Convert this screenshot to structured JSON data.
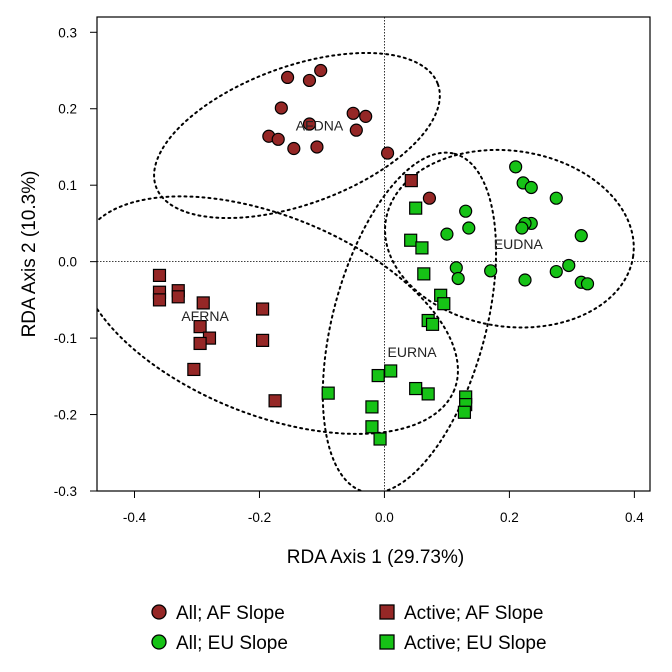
{
  "chart_data": {
    "type": "scatter",
    "xlabel": "RDA Axis 1 (29.73%)",
    "ylabel": "RDA Axis 2 (10.3%)",
    "xlim": [
      -0.46,
      0.425
    ],
    "ylim": [
      -0.3,
      0.32
    ],
    "xticks": [
      -0.4,
      -0.2,
      0.0,
      0.2,
      0.4
    ],
    "yticks": [
      -0.3,
      -0.2,
      -0.1,
      0.0,
      0.1,
      0.2,
      0.3
    ],
    "xtick_labels": [
      "-0.4",
      "-0.2",
      "0.0",
      "0.2",
      "0.4"
    ],
    "ytick_labels": [
      "-0.3",
      "-0.2",
      "-0.1",
      "0.0",
      "0.1",
      "0.2",
      "0.3"
    ],
    "grid": false,
    "zero_lines": true,
    "legend_position": "bottom",
    "colors": {
      "AF": "#952726",
      "EU": "#16c216",
      "outline": "#000000"
    },
    "series": [
      {
        "name": "All; AF Slope",
        "group": "AF",
        "marker": "circle",
        "points": [
          [
            -0.155,
            0.241
          ],
          [
            -0.12,
            0.237
          ],
          [
            -0.102,
            0.25
          ],
          [
            -0.165,
            0.201
          ],
          [
            -0.185,
            0.164
          ],
          [
            -0.17,
            0.16
          ],
          [
            -0.12,
            0.18
          ],
          [
            -0.05,
            0.194
          ],
          [
            -0.03,
            0.19
          ],
          [
            -0.045,
            0.172
          ],
          [
            -0.145,
            0.148
          ],
          [
            -0.108,
            0.15
          ],
          [
            0.005,
            0.142
          ],
          [
            0.072,
            0.083
          ]
        ]
      },
      {
        "name": "Active; AF Slope",
        "group": "AF",
        "marker": "square",
        "points": [
          [
            -0.36,
            -0.018
          ],
          [
            -0.36,
            -0.04
          ],
          [
            -0.33,
            -0.038
          ],
          [
            -0.33,
            -0.046
          ],
          [
            -0.36,
            -0.05
          ],
          [
            -0.29,
            -0.054
          ],
          [
            -0.195,
            -0.062
          ],
          [
            -0.295,
            -0.085
          ],
          [
            -0.28,
            -0.1
          ],
          [
            -0.295,
            -0.107
          ],
          [
            -0.195,
            -0.103
          ],
          [
            -0.305,
            -0.141
          ],
          [
            -0.175,
            -0.182
          ],
          [
            0.043,
            0.106
          ]
        ]
      },
      {
        "name": "All; EU Slope",
        "group": "EU",
        "marker": "circle",
        "points": [
          [
            0.21,
            0.124
          ],
          [
            0.222,
            0.103
          ],
          [
            0.235,
            0.097
          ],
          [
            0.275,
            0.083
          ],
          [
            0.13,
            0.066
          ],
          [
            0.235,
            0.05
          ],
          [
            0.225,
            0.05
          ],
          [
            0.22,
            0.044
          ],
          [
            0.135,
            0.044
          ],
          [
            0.1,
            0.036
          ],
          [
            0.315,
            0.034
          ],
          [
            0.115,
            -0.008
          ],
          [
            0.118,
            -0.022
          ],
          [
            0.17,
            -0.012
          ],
          [
            0.225,
            -0.024
          ],
          [
            0.275,
            -0.013
          ],
          [
            0.295,
            -0.005
          ],
          [
            0.315,
            -0.027
          ],
          [
            0.325,
            -0.029
          ]
        ]
      },
      {
        "name": "Active; EU Slope",
        "group": "EU",
        "marker": "square",
        "points": [
          [
            0.05,
            0.07
          ],
          [
            0.042,
            0.028
          ],
          [
            0.06,
            0.018
          ],
          [
            0.063,
            -0.016
          ],
          [
            0.09,
            -0.044
          ],
          [
            0.095,
            -0.055
          ],
          [
            0.07,
            -0.077
          ],
          [
            0.077,
            -0.082
          ],
          [
            -0.09,
            -0.172
          ],
          [
            0.01,
            -0.143
          ],
          [
            -0.01,
            -0.149
          ],
          [
            0.05,
            -0.166
          ],
          [
            0.07,
            -0.173
          ],
          [
            -0.02,
            -0.19
          ],
          [
            -0.02,
            -0.216
          ],
          [
            -0.007,
            -0.232
          ],
          [
            0.13,
            -0.177
          ],
          [
            0.13,
            -0.187
          ],
          [
            0.128,
            -0.197
          ]
        ]
      }
    ],
    "ellipses": [
      {
        "group": "AF",
        "label": "AFDNA",
        "label_pos": [
          -0.142,
          0.178
        ],
        "center": [
          -0.14,
          0.165
        ],
        "rx": 0.24,
        "ry": 0.09,
        "angle_deg": -20
      },
      {
        "group": "AF",
        "label": "AFRNA",
        "label_pos": [
          -0.325,
          -0.071
        ],
        "center": [
          -0.185,
          -0.07
        ],
        "rx": 0.32,
        "ry": 0.13,
        "angle_deg": 22
      },
      {
        "group": "EU",
        "label": "EUDNA",
        "label_pos": [
          0.175,
          0.023
        ],
        "center": [
          0.2,
          0.03
        ],
        "rx": 0.2,
        "ry": 0.115,
        "angle_deg": 8
      },
      {
        "group": "EU",
        "label": "EURNA",
        "label_pos": [
          0.005,
          -0.118
        ],
        "center": [
          0.04,
          -0.08
        ],
        "rx": 0.28,
        "ry": 0.1,
        "angle_deg": -75
      }
    ]
  }
}
